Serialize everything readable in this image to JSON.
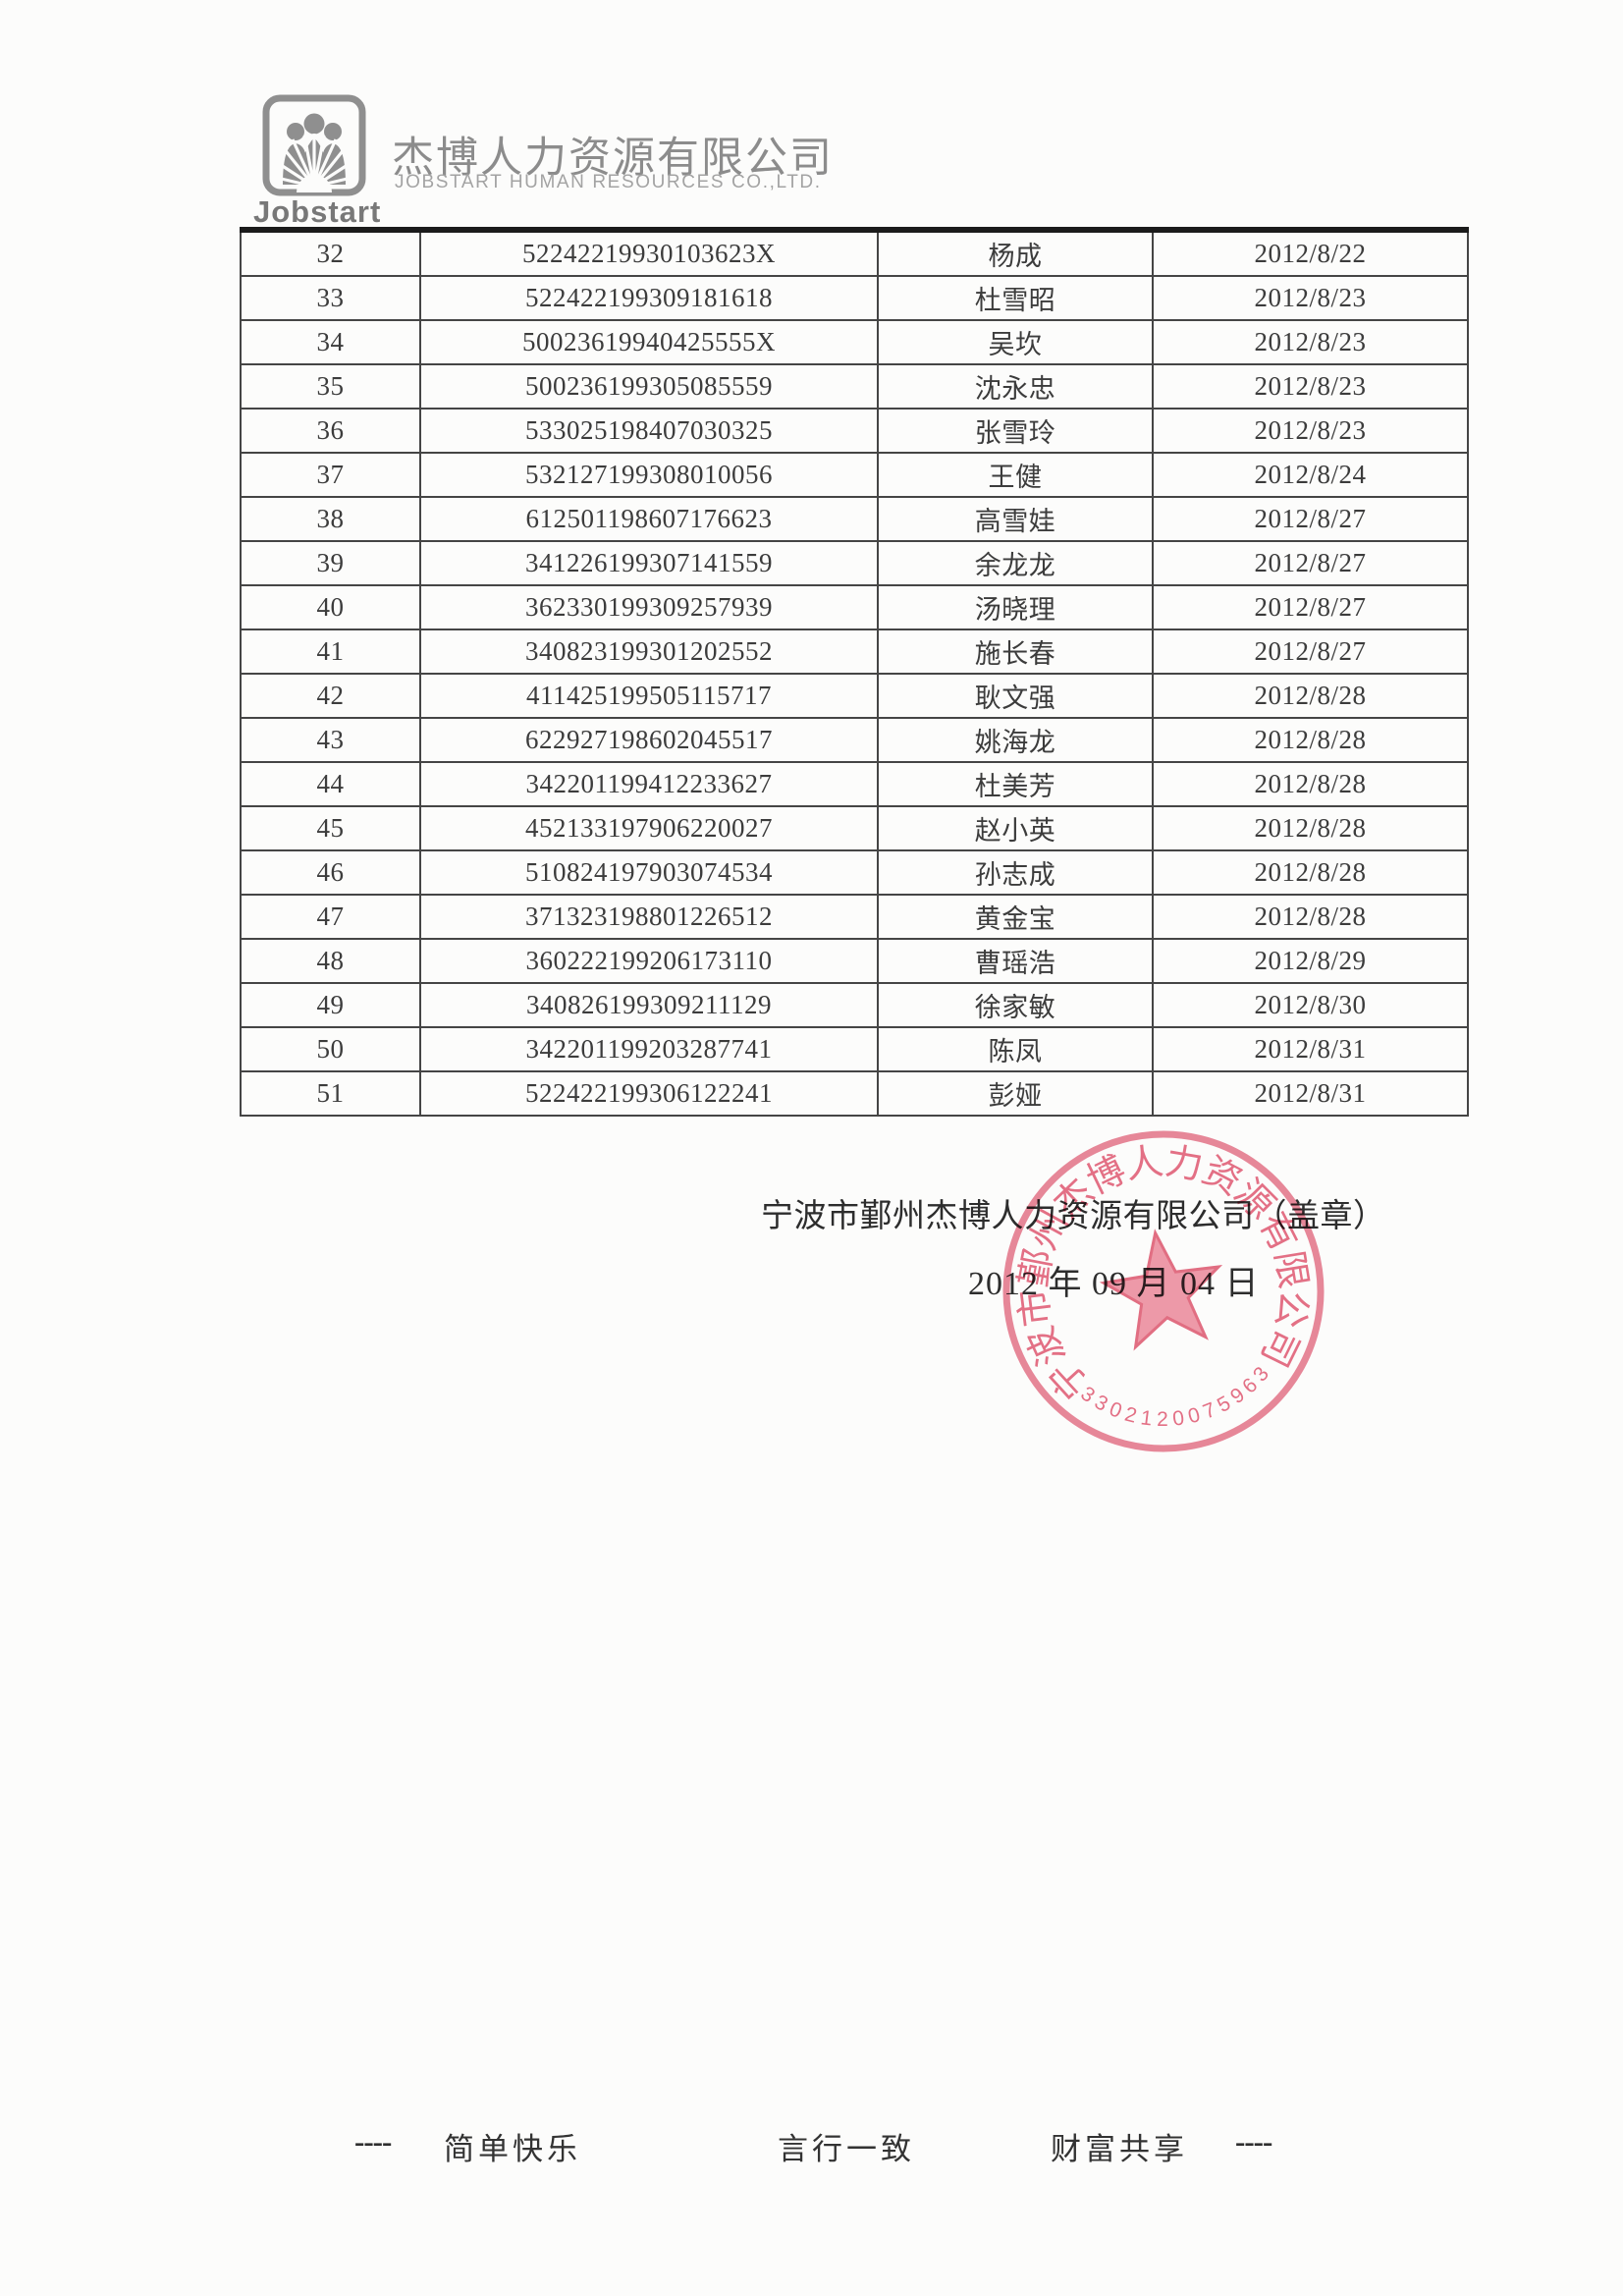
{
  "header": {
    "logo_text": "Jobstart",
    "company_name_zh": "杰博人力资源有限公司",
    "company_name_en": "JOBSTART HUMAN RESOURCES CO.,LTD."
  },
  "table": {
    "rows": [
      {
        "no": "32",
        "id": "52242219930103623X",
        "name": "杨成",
        "date": "2012/8/22"
      },
      {
        "no": "33",
        "id": "522422199309181618",
        "name": "杜雪昭",
        "date": "2012/8/23"
      },
      {
        "no": "34",
        "id": "50023619940425555X",
        "name": "吴坎",
        "date": "2012/8/23"
      },
      {
        "no": "35",
        "id": "500236199305085559",
        "name": "沈永忠",
        "date": "2012/8/23"
      },
      {
        "no": "36",
        "id": "533025198407030325",
        "name": "张雪玲",
        "date": "2012/8/23"
      },
      {
        "no": "37",
        "id": "532127199308010056",
        "name": "王健",
        "date": "2012/8/24"
      },
      {
        "no": "38",
        "id": "612501198607176623",
        "name": "高雪娃",
        "date": "2012/8/27"
      },
      {
        "no": "39",
        "id": "341226199307141559",
        "name": "余龙龙",
        "date": "2012/8/27"
      },
      {
        "no": "40",
        "id": "362330199309257939",
        "name": "汤晓理",
        "date": "2012/8/27"
      },
      {
        "no": "41",
        "id": "340823199301202552",
        "name": "施长春",
        "date": "2012/8/27"
      },
      {
        "no": "42",
        "id": "411425199505115717",
        "name": "耿文强",
        "date": "2012/8/28"
      },
      {
        "no": "43",
        "id": "622927198602045517",
        "name": "姚海龙",
        "date": "2012/8/28"
      },
      {
        "no": "44",
        "id": "342201199412233627",
        "name": "杜美芳",
        "date": "2012/8/28"
      },
      {
        "no": "45",
        "id": "452133197906220027",
        "name": "赵小英",
        "date": "2012/8/28"
      },
      {
        "no": "46",
        "id": "510824197903074534",
        "name": "孙志成",
        "date": "2012/8/28"
      },
      {
        "no": "47",
        "id": "371323198801226512",
        "name": "黄金宝",
        "date": "2012/8/28"
      },
      {
        "no": "48",
        "id": "360222199206173110",
        "name": "曹瑶浩",
        "date": "2012/8/29"
      },
      {
        "no": "49",
        "id": "340826199309211129",
        "name": "徐家敏",
        "date": "2012/8/30"
      },
      {
        "no": "50",
        "id": "342201199203287741",
        "name": "陈凤",
        "date": "2012/8/31"
      },
      {
        "no": "51",
        "id": "522422199306122241",
        "name": "彭娅",
        "date": "2012/8/31"
      }
    ]
  },
  "signature": {
    "company_line": "宁波市鄞州杰博人力资源有限公司（盖章）",
    "date_line": "2012 年 09 月 04 日"
  },
  "seal": {
    "ring_text": "宁波市鄞州杰博人力资源有限公司",
    "number": "3302120075963",
    "color": "#e4657d"
  },
  "footer": {
    "items": [
      "----",
      "简单快乐",
      "言行一致",
      "财富共享",
      "----"
    ]
  }
}
